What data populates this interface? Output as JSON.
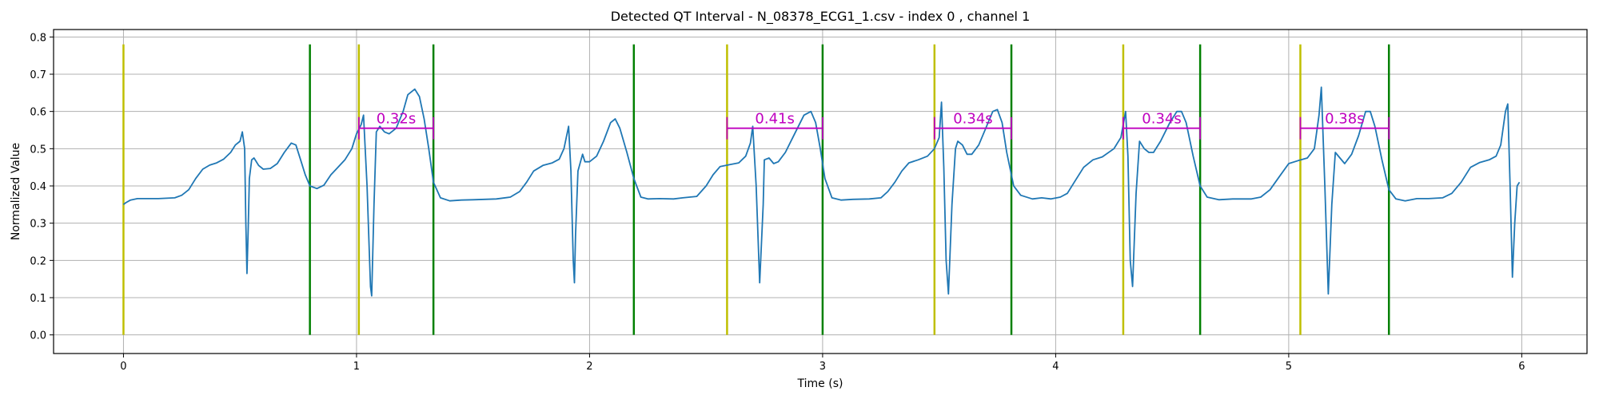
{
  "chart_data": {
    "type": "line",
    "title": "Detected QT Interval - N_08378_ECG1_1.csv - index 0 , channel 1",
    "xlabel": "Time (s)",
    "ylabel": "Normalized Value",
    "xlim": [
      -0.3,
      6.28
    ],
    "ylim": [
      -0.05,
      0.82
    ],
    "grid": true,
    "x_ticks": [
      0,
      1,
      2,
      3,
      4,
      5,
      6
    ],
    "y_ticks": [
      0.0,
      0.1,
      0.2,
      0.3,
      0.4,
      0.5,
      0.6,
      0.7,
      0.8
    ],
    "colors": {
      "signal": "#1f77b4",
      "q_marker": "#bfbf00",
      "t_marker": "#008000",
      "qt_bracket": "#bf00bf",
      "grid": "#b0b0b0"
    },
    "series": [
      {
        "values": [
          [
            0.0,
            0.35
          ],
          [
            0.01,
            0.355
          ],
          [
            0.03,
            0.362
          ],
          [
            0.06,
            0.366
          ],
          [
            0.1,
            0.366
          ],
          [
            0.15,
            0.366
          ],
          [
            0.22,
            0.368
          ],
          [
            0.25,
            0.375
          ],
          [
            0.28,
            0.39
          ],
          [
            0.31,
            0.42
          ],
          [
            0.34,
            0.445
          ],
          [
            0.37,
            0.456
          ],
          [
            0.4,
            0.462
          ],
          [
            0.43,
            0.472
          ],
          [
            0.46,
            0.49
          ],
          [
            0.48,
            0.51
          ],
          [
            0.5,
            0.52
          ],
          [
            0.51,
            0.545
          ],
          [
            0.52,
            0.5
          ],
          [
            0.525,
            0.3
          ],
          [
            0.53,
            0.165
          ],
          [
            0.535,
            0.28
          ],
          [
            0.54,
            0.42
          ],
          [
            0.55,
            0.47
          ],
          [
            0.56,
            0.475
          ],
          [
            0.58,
            0.455
          ],
          [
            0.6,
            0.445
          ],
          [
            0.63,
            0.447
          ],
          [
            0.66,
            0.46
          ],
          [
            0.69,
            0.49
          ],
          [
            0.72,
            0.515
          ],
          [
            0.74,
            0.51
          ],
          [
            0.76,
            0.47
          ],
          [
            0.78,
            0.43
          ],
          [
            0.8,
            0.4
          ],
          [
            0.83,
            0.393
          ],
          [
            0.86,
            0.402
          ],
          [
            0.89,
            0.43
          ],
          [
            0.92,
            0.45
          ],
          [
            0.95,
            0.47
          ],
          [
            0.98,
            0.5
          ],
          [
            1.0,
            0.54
          ],
          [
            1.02,
            0.565
          ],
          [
            1.03,
            0.59
          ],
          [
            1.045,
            0.4
          ],
          [
            1.06,
            0.13
          ],
          [
            1.065,
            0.105
          ],
          [
            1.075,
            0.35
          ],
          [
            1.085,
            0.545
          ],
          [
            1.1,
            0.56
          ],
          [
            1.12,
            0.545
          ],
          [
            1.14,
            0.54
          ],
          [
            1.17,
            0.555
          ],
          [
            1.2,
            0.6
          ],
          [
            1.22,
            0.645
          ],
          [
            1.25,
            0.66
          ],
          [
            1.27,
            0.64
          ],
          [
            1.29,
            0.58
          ],
          [
            1.31,
            0.5
          ],
          [
            1.33,
            0.41
          ],
          [
            1.36,
            0.368
          ],
          [
            1.4,
            0.36
          ],
          [
            1.45,
            0.362
          ],
          [
            1.5,
            0.363
          ],
          [
            1.6,
            0.365
          ],
          [
            1.66,
            0.37
          ],
          [
            1.7,
            0.385
          ],
          [
            1.73,
            0.41
          ],
          [
            1.76,
            0.44
          ],
          [
            1.8,
            0.455
          ],
          [
            1.84,
            0.462
          ],
          [
            1.87,
            0.472
          ],
          [
            1.89,
            0.5
          ],
          [
            1.91,
            0.56
          ],
          [
            1.92,
            0.44
          ],
          [
            1.93,
            0.2
          ],
          [
            1.935,
            0.14
          ],
          [
            1.94,
            0.27
          ],
          [
            1.95,
            0.44
          ],
          [
            1.97,
            0.485
          ],
          [
            1.98,
            0.465
          ],
          [
            2.0,
            0.465
          ],
          [
            2.03,
            0.48
          ],
          [
            2.06,
            0.52
          ],
          [
            2.09,
            0.57
          ],
          [
            2.11,
            0.58
          ],
          [
            2.13,
            0.555
          ],
          [
            2.16,
            0.49
          ],
          [
            2.19,
            0.42
          ],
          [
            2.22,
            0.37
          ],
          [
            2.25,
            0.365
          ],
          [
            2.3,
            0.366
          ],
          [
            2.36,
            0.365
          ],
          [
            2.4,
            0.368
          ],
          [
            2.46,
            0.372
          ],
          [
            2.5,
            0.4
          ],
          [
            2.53,
            0.43
          ],
          [
            2.56,
            0.452
          ],
          [
            2.6,
            0.457
          ],
          [
            2.64,
            0.462
          ],
          [
            2.67,
            0.48
          ],
          [
            2.69,
            0.515
          ],
          [
            2.7,
            0.56
          ],
          [
            2.715,
            0.4
          ],
          [
            2.73,
            0.14
          ],
          [
            2.745,
            0.35
          ],
          [
            2.75,
            0.47
          ],
          [
            2.77,
            0.475
          ],
          [
            2.79,
            0.46
          ],
          [
            2.81,
            0.465
          ],
          [
            2.84,
            0.49
          ],
          [
            2.88,
            0.54
          ],
          [
            2.92,
            0.59
          ],
          [
            2.95,
            0.6
          ],
          [
            2.97,
            0.57
          ],
          [
            2.99,
            0.5
          ],
          [
            3.01,
            0.42
          ],
          [
            3.04,
            0.368
          ],
          [
            3.08,
            0.362
          ],
          [
            3.13,
            0.364
          ],
          [
            3.2,
            0.365
          ],
          [
            3.25,
            0.368
          ],
          [
            3.28,
            0.385
          ],
          [
            3.31,
            0.41
          ],
          [
            3.34,
            0.44
          ],
          [
            3.37,
            0.462
          ],
          [
            3.41,
            0.47
          ],
          [
            3.45,
            0.48
          ],
          [
            3.48,
            0.5
          ],
          [
            3.5,
            0.53
          ],
          [
            3.51,
            0.625
          ],
          [
            3.52,
            0.45
          ],
          [
            3.53,
            0.2
          ],
          [
            3.54,
            0.11
          ],
          [
            3.555,
            0.35
          ],
          [
            3.57,
            0.5
          ],
          [
            3.58,
            0.52
          ],
          [
            3.6,
            0.51
          ],
          [
            3.62,
            0.485
          ],
          [
            3.64,
            0.485
          ],
          [
            3.67,
            0.51
          ],
          [
            3.7,
            0.555
          ],
          [
            3.73,
            0.6
          ],
          [
            3.75,
            0.605
          ],
          [
            3.77,
            0.57
          ],
          [
            3.79,
            0.49
          ],
          [
            3.82,
            0.4
          ],
          [
            3.85,
            0.375
          ],
          [
            3.9,
            0.365
          ],
          [
            3.94,
            0.368
          ],
          [
            3.98,
            0.365
          ],
          [
            4.02,
            0.37
          ],
          [
            4.05,
            0.38
          ],
          [
            4.08,
            0.41
          ],
          [
            4.12,
            0.45
          ],
          [
            4.16,
            0.47
          ],
          [
            4.2,
            0.478
          ],
          [
            4.25,
            0.5
          ],
          [
            4.28,
            0.53
          ],
          [
            4.3,
            0.6
          ],
          [
            4.31,
            0.48
          ],
          [
            4.32,
            0.2
          ],
          [
            4.33,
            0.13
          ],
          [
            4.345,
            0.38
          ],
          [
            4.36,
            0.52
          ],
          [
            4.38,
            0.5
          ],
          [
            4.4,
            0.49
          ],
          [
            4.42,
            0.49
          ],
          [
            4.45,
            0.52
          ],
          [
            4.49,
            0.57
          ],
          [
            4.52,
            0.6
          ],
          [
            4.54,
            0.6
          ],
          [
            4.56,
            0.57
          ],
          [
            4.59,
            0.48
          ],
          [
            4.62,
            0.4
          ],
          [
            4.65,
            0.37
          ],
          [
            4.7,
            0.363
          ],
          [
            4.76,
            0.365
          ],
          [
            4.84,
            0.365
          ],
          [
            4.88,
            0.37
          ],
          [
            4.92,
            0.39
          ],
          [
            4.96,
            0.425
          ],
          [
            5.0,
            0.46
          ],
          [
            5.04,
            0.468
          ],
          [
            5.08,
            0.475
          ],
          [
            5.11,
            0.5
          ],
          [
            5.13,
            0.59
          ],
          [
            5.14,
            0.665
          ],
          [
            5.155,
            0.4
          ],
          [
            5.17,
            0.11
          ],
          [
            5.185,
            0.35
          ],
          [
            5.2,
            0.49
          ],
          [
            5.22,
            0.475
          ],
          [
            5.24,
            0.46
          ],
          [
            5.27,
            0.485
          ],
          [
            5.3,
            0.535
          ],
          [
            5.33,
            0.6
          ],
          [
            5.35,
            0.6
          ],
          [
            5.37,
            0.56
          ],
          [
            5.4,
            0.47
          ],
          [
            5.43,
            0.39
          ],
          [
            5.46,
            0.365
          ],
          [
            5.5,
            0.36
          ],
          [
            5.55,
            0.366
          ],
          [
            5.6,
            0.366
          ],
          [
            5.66,
            0.368
          ],
          [
            5.7,
            0.38
          ],
          [
            5.74,
            0.41
          ],
          [
            5.78,
            0.45
          ],
          [
            5.82,
            0.463
          ],
          [
            5.86,
            0.47
          ],
          [
            5.89,
            0.48
          ],
          [
            5.91,
            0.51
          ],
          [
            5.93,
            0.6
          ],
          [
            5.94,
            0.62
          ],
          [
            5.95,
            0.4
          ],
          [
            5.96,
            0.155
          ],
          [
            5.97,
            0.3
          ],
          [
            5.98,
            0.4
          ],
          [
            5.99,
            0.41
          ]
        ]
      }
    ],
    "q_onsets": [
      0.0,
      1.01,
      2.59,
      3.48,
      4.29,
      5.05
    ],
    "t_offsets": [
      0.8,
      1.33,
      2.19,
      3.0,
      3.81,
      4.62,
      5.43
    ],
    "vline_range": [
      0.0,
      0.78
    ],
    "qt_intervals": [
      {
        "start": 1.01,
        "end": 1.33,
        "y": 0.555,
        "label": "0.32s"
      },
      {
        "start": 2.59,
        "end": 3.0,
        "y": 0.555,
        "label": "0.41s"
      },
      {
        "start": 3.48,
        "end": 3.81,
        "y": 0.555,
        "label": "0.34s"
      },
      {
        "start": 4.29,
        "end": 4.62,
        "y": 0.555,
        "label": "0.34s"
      },
      {
        "start": 5.05,
        "end": 5.43,
        "y": 0.555,
        "label": "0.38s"
      }
    ]
  }
}
